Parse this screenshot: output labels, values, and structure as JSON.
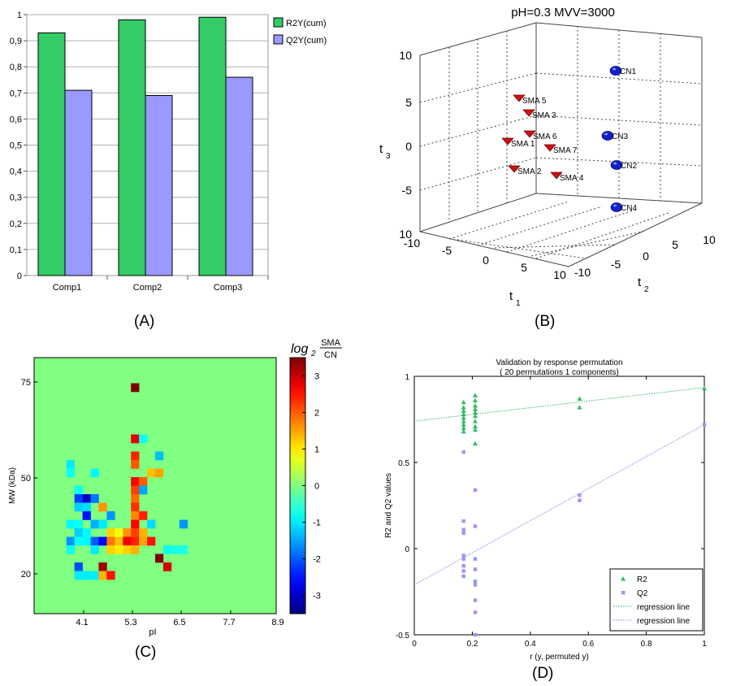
{
  "panels": {
    "a": {
      "label": "(A)"
    },
    "b": {
      "label": "(B)"
    },
    "c": {
      "label": "(C)"
    },
    "d": {
      "label": "(D)"
    }
  },
  "chart_data": [
    {
      "id": "A",
      "type": "bar",
      "categories": [
        "Comp1",
        "Comp2",
        "Comp3"
      ],
      "series": [
        {
          "name": "R2Y(cum)",
          "values": [
            0.93,
            0.98,
            0.99
          ],
          "color": "#33cc66"
        },
        {
          "name": "Q2Y(cum)",
          "values": [
            0.71,
            0.69,
            0.76
          ],
          "color": "#9999ff"
        }
      ],
      "ylim": [
        0,
        1
      ],
      "yticks": [
        0,
        0.1,
        0.2,
        0.3,
        0.4,
        0.5,
        0.6,
        0.7,
        0.8,
        0.9,
        1
      ],
      "ytick_labels": [
        "0",
        "0,1",
        "0,2",
        "0,3",
        "0,4",
        "0,5",
        "0,6",
        "0,7",
        "0,8",
        "0,9",
        "1"
      ],
      "legend": "right",
      "grid": true
    },
    {
      "id": "B",
      "type": "scatter",
      "title": "pH=0.3  MVV=3000",
      "xlabel_main": "t",
      "xlabel_sub": "1",
      "ylabel_main": "t",
      "ylabel_sub": "2",
      "zlabel_main": "t",
      "zlabel_sub": "3",
      "t1_ticks": [
        "-10",
        "-5",
        "0",
        "5",
        "10"
      ],
      "t2_ticks": [
        "-10",
        "-5",
        "0",
        "5",
        "10"
      ],
      "t3_ticks": [
        "10",
        "5",
        "0",
        "-5",
        "10"
      ],
      "groups": [
        {
          "name": "SMA",
          "color": "#cc1111",
          "marker": "triangle",
          "points": [
            {
              "label": "SMA 5",
              "t3": 5.2
            },
            {
              "label": "SMA 3",
              "t3": 3.5
            },
            {
              "label": "SMA 6",
              "t3": 1.2
            },
            {
              "label": "SMA 1",
              "t3": 0.5
            },
            {
              "label": "SMA 7",
              "t3": -0.3
            },
            {
              "label": "SMA 2",
              "t3": -2.8
            },
            {
              "label": "SMA 4",
              "t3": -3.5
            }
          ]
        },
        {
          "name": "CN",
          "color": "#1122cc",
          "marker": "sphere",
          "points": [
            {
              "label": "CN1",
              "t3": 8.5
            },
            {
              "label": "CN3",
              "t3": 1.0
            },
            {
              "label": "CN2",
              "t3": -2.5
            },
            {
              "label": "CN4",
              "t3": -8.0
            }
          ]
        }
      ],
      "grid": true
    },
    {
      "id": "C",
      "type": "heatmap",
      "xlabel": "pI",
      "ylabel": "MW (kDa)",
      "xticks": [
        "4.1",
        "5.3",
        "6.5",
        "7.7",
        "8.9"
      ],
      "yticks": [
        "75",
        "50",
        "20"
      ],
      "colorbar_title": "log2 SMA/CN",
      "colorbar_ticks": [
        "3",
        "2",
        "1",
        "0",
        "-1",
        "-2",
        "-3"
      ],
      "vlim": [
        -3.5,
        3.5
      ],
      "background_value": 0,
      "grid_cols": 30,
      "grid_rows": 30,
      "cells": [
        {
          "c": 12,
          "r": 3,
          "v": 3.5
        },
        {
          "c": 12,
          "r": 9,
          "v": 2.8
        },
        {
          "c": 13,
          "r": 9,
          "v": -0.8
        },
        {
          "c": 12,
          "r": 11,
          "v": 2.4
        },
        {
          "c": 15,
          "r": 11,
          "v": -1.3
        },
        {
          "c": 12,
          "r": 12,
          "v": 2.0
        },
        {
          "c": 4,
          "r": 12,
          "v": -1.0
        },
        {
          "c": 4,
          "r": 13,
          "v": -0.8
        },
        {
          "c": 7,
          "r": 13,
          "v": -0.9
        },
        {
          "c": 14,
          "r": 13,
          "v": 1.3
        },
        {
          "c": 15,
          "r": 13,
          "v": 1.5
        },
        {
          "c": 12,
          "r": 14,
          "v": 2.6
        },
        {
          "c": 13,
          "r": 14,
          "v": 2.0
        },
        {
          "c": 5,
          "r": 15,
          "v": -0.8
        },
        {
          "c": 12,
          "r": 15,
          "v": 2.2
        },
        {
          "c": 13,
          "r": 15,
          "v": -1.5
        },
        {
          "c": 5,
          "r": 16,
          "v": -2.2
        },
        {
          "c": 6,
          "r": 16,
          "v": -3.0
        },
        {
          "c": 7,
          "r": 16,
          "v": -1.8
        },
        {
          "c": 12,
          "r": 16,
          "v": 1.9
        },
        {
          "c": 5,
          "r": 17,
          "v": -1.2
        },
        {
          "c": 6,
          "r": 17,
          "v": -1.1
        },
        {
          "c": 8,
          "r": 17,
          "v": 1.6
        },
        {
          "c": 12,
          "r": 17,
          "v": 2.3
        },
        {
          "c": 6,
          "r": 18,
          "v": -2.5
        },
        {
          "c": 9,
          "r": 18,
          "v": -1.6
        },
        {
          "c": 12,
          "r": 18,
          "v": 1.7
        },
        {
          "c": 13,
          "r": 18,
          "v": 2.4
        },
        {
          "c": 4,
          "r": 19,
          "v": -0.9
        },
        {
          "c": 5,
          "r": 19,
          "v": -0.8
        },
        {
          "c": 7,
          "r": 19,
          "v": -1.4
        },
        {
          "c": 8,
          "r": 19,
          "v": -1.0
        },
        {
          "c": 12,
          "r": 19,
          "v": 2.6
        },
        {
          "c": 14,
          "r": 19,
          "v": -1.1
        },
        {
          "c": 18,
          "r": 19,
          "v": -1.6
        },
        {
          "c": 5,
          "r": 20,
          "v": -1.2
        },
        {
          "c": 6,
          "r": 20,
          "v": -0.9
        },
        {
          "c": 9,
          "r": 20,
          "v": 1.2
        },
        {
          "c": 10,
          "r": 20,
          "v": 0.8
        },
        {
          "c": 11,
          "r": 20,
          "v": 1.6
        },
        {
          "c": 12,
          "r": 20,
          "v": 2.2
        },
        {
          "c": 13,
          "r": 20,
          "v": 1.4
        },
        {
          "c": 4,
          "r": 21,
          "v": -1.6
        },
        {
          "c": 5,
          "r": 21,
          "v": -0.8
        },
        {
          "c": 6,
          "r": 21,
          "v": -0.9
        },
        {
          "c": 7,
          "r": 21,
          "v": -2.0
        },
        {
          "c": 8,
          "r": 21,
          "v": -2.6
        },
        {
          "c": 9,
          "r": 21,
          "v": 1.8
        },
        {
          "c": 10,
          "r": 21,
          "v": 1.3
        },
        {
          "c": 11,
          "r": 21,
          "v": 2.7
        },
        {
          "c": 12,
          "r": 21,
          "v": 2.4
        },
        {
          "c": 13,
          "r": 21,
          "v": 1.5
        },
        {
          "c": 14,
          "r": 21,
          "v": 2.5
        },
        {
          "c": 4,
          "r": 22,
          "v": -0.8
        },
        {
          "c": 7,
          "r": 22,
          "v": -1.0
        },
        {
          "c": 9,
          "r": 22,
          "v": 1.2
        },
        {
          "c": 10,
          "r": 22,
          "v": 1.0
        },
        {
          "c": 11,
          "r": 22,
          "v": 1.2
        },
        {
          "c": 12,
          "r": 22,
          "v": 1.4
        },
        {
          "c": 16,
          "r": 22,
          "v": -0.8
        },
        {
          "c": 17,
          "r": 22,
          "v": -0.7
        },
        {
          "c": 18,
          "r": 22,
          "v": -0.7
        },
        {
          "c": 15,
          "r": 23,
          "v": 3.5
        },
        {
          "c": 5,
          "r": 24,
          "v": -2.1
        },
        {
          "c": 8,
          "r": 24,
          "v": 3.3
        },
        {
          "c": 16,
          "r": 24,
          "v": 2.9
        },
        {
          "c": 5,
          "r": 25,
          "v": -1.0
        },
        {
          "c": 6,
          "r": 25,
          "v": -1.0
        },
        {
          "c": 7,
          "r": 25,
          "v": -1.0
        },
        {
          "c": 8,
          "r": 25,
          "v": 1.4
        },
        {
          "c": 9,
          "r": 25,
          "v": 2.5
        }
      ]
    },
    {
      "id": "D",
      "type": "scatter",
      "title": "Validation by response permutation",
      "subtitle": "( 20 permutations 1 components)",
      "xlabel": "r (y, permuted y)",
      "ylabel": "R2 and Q2 values",
      "xlim": [
        0,
        1
      ],
      "ylim": [
        -0.5,
        1
      ],
      "xticks": [
        0,
        0.2,
        0.4,
        0.6,
        0.8,
        1
      ],
      "xtick_labels": [
        "0",
        "0.2",
        "0.4",
        "0.6",
        "0.8",
        "1"
      ],
      "yticks": [
        -0.5,
        0,
        0.5,
        1
      ],
      "ytick_labels": [
        "-0.5",
        "0",
        "0.5",
        "1"
      ],
      "legend": "bottom-right",
      "series": [
        {
          "name": "R2",
          "color": "#33bb66",
          "marker": "triangle",
          "x": [
            0.17,
            0.17,
            0.17,
            0.17,
            0.17,
            0.17,
            0.17,
            0.17,
            0.17,
            0.21,
            0.21,
            0.21,
            0.21,
            0.21,
            0.21,
            0.21,
            0.21,
            0.21,
            0.21,
            0.57,
            0.57,
            1.0
          ],
          "y": [
            0.85,
            0.82,
            0.8,
            0.78,
            0.76,
            0.74,
            0.72,
            0.7,
            0.68,
            0.89,
            0.86,
            0.83,
            0.81,
            0.79,
            0.77,
            0.74,
            0.71,
            0.69,
            0.61,
            0.87,
            0.82,
            0.93
          ]
        },
        {
          "name": "Q2",
          "color": "#9999ee",
          "marker": "square",
          "x": [
            0.17,
            0.17,
            0.17,
            0.17,
            0.17,
            0.17,
            0.17,
            0.17,
            0.17,
            0.21,
            0.21,
            0.21,
            0.21,
            0.21,
            0.21,
            0.21,
            0.21,
            0.21,
            0.57,
            0.57,
            1.0
          ],
          "y": [
            0.56,
            0.16,
            0.11,
            0.09,
            -0.04,
            -0.06,
            -0.1,
            -0.13,
            -0.16,
            0.34,
            0.13,
            -0.06,
            -0.12,
            -0.19,
            -0.21,
            -0.3,
            -0.37,
            -0.5,
            0.31,
            0.28,
            0.72
          ]
        },
        {
          "name": "regression line",
          "color": "#33bb66",
          "line": "dotted",
          "x": [
            0,
            1
          ],
          "y": [
            0.74,
            0.935
          ]
        },
        {
          "name": "regression line",
          "color": "#8888ee",
          "line": "dotted",
          "x": [
            0,
            1
          ],
          "y": [
            -0.21,
            0.72
          ]
        }
      ]
    }
  ]
}
